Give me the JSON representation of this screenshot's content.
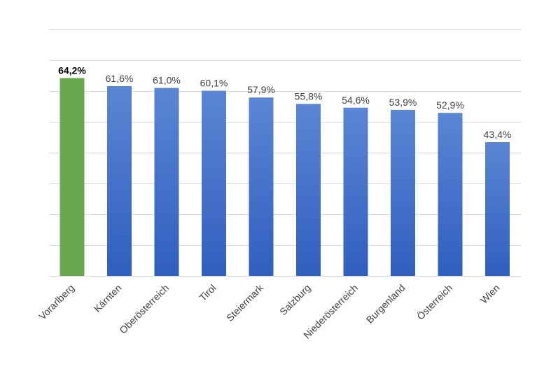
{
  "chart_data": {
    "type": "bar",
    "categories": [
      "Vorarlberg",
      "Kärnten",
      "Oberösterreich",
      "Tirol",
      "Steiermark",
      "Salzburg",
      "Niederösterreich",
      "Burgenland",
      "Österreich",
      "Wien"
    ],
    "values": [
      64.2,
      61.6,
      61.0,
      60.1,
      57.9,
      55.8,
      54.6,
      53.9,
      52.9,
      43.4
    ],
    "value_labels": [
      "64,2%",
      "61,6%",
      "61,0%",
      "60,1%",
      "57,9%",
      "55,8%",
      "54,6%",
      "53,9%",
      "52,9%",
      "43,4%"
    ],
    "highlight_index": 0,
    "title": "",
    "xlabel": "",
    "ylabel": "",
    "ylim": [
      0,
      80
    ],
    "grid": true,
    "gridlines": 8,
    "colors": {
      "default_bar_top": "#5b86d4",
      "default_bar_bottom": "#2f5fbf",
      "highlight_bar": "#6aa84f"
    }
  }
}
